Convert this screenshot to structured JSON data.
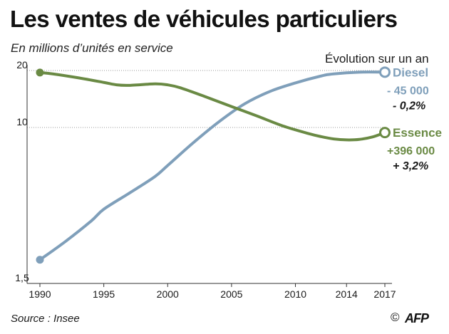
{
  "header": {
    "title": "Les ventes de véhicules particuliers",
    "subtitle": "En millions d’unités en service",
    "evolution_label": "Évolution sur un an"
  },
  "footer": {
    "source": "Source : Insee",
    "copyright": "©",
    "brand": "AFP"
  },
  "colors": {
    "diesel": "#7f9fba",
    "essence": "#6a8a44",
    "axis": "#333333",
    "grid": "#9a9a9a"
  },
  "chart_data": {
    "type": "line",
    "title": "Les ventes de véhicules particuliers",
    "subtitle": "En millions d’unités en service",
    "xlabel": "",
    "ylabel": "",
    "y_scale": "log",
    "ylim": [
      1.5,
      20
    ],
    "yticks": [
      1.5,
      10,
      20
    ],
    "ytick_labels": [
      "1,5",
      "10",
      "20"
    ],
    "xlim": [
      1990,
      2017
    ],
    "xticks": [
      1990,
      1995,
      2000,
      2005,
      2010,
      2014,
      2017
    ],
    "xtick_labels": [
      "1990",
      "1995",
      "2000",
      "2005",
      "2010",
      "2014",
      "2017"
    ],
    "grid": "horizontal at 10 and 20",
    "series": [
      {
        "name": "Diesel",
        "key": "diesel",
        "x": [
          1990,
          1992,
          1994,
          1995,
          1997,
          1999,
          2000,
          2002,
          2004,
          2006,
          2008,
          2010,
          2012,
          2013,
          2015,
          2017
        ],
        "y": [
          2.0,
          2.5,
          3.2,
          3.7,
          4.5,
          5.5,
          6.3,
          8.3,
          10.7,
          13.3,
          15.5,
          17.2,
          18.7,
          19.2,
          19.6,
          19.6
        ],
        "label_value": "- 45 000",
        "label_pct": "- 0,2%"
      },
      {
        "name": "Essence",
        "key": "essence",
        "x": [
          1990,
          1991,
          1993,
          1995,
          1996,
          1997,
          1999,
          2000,
          2001,
          2003,
          2005,
          2007,
          2009,
          2011,
          2012,
          2013,
          2014,
          2015,
          2016,
          2017
        ],
        "y": [
          19.5,
          19.2,
          18.3,
          17.3,
          16.8,
          16.7,
          17.0,
          16.8,
          16.2,
          14.5,
          12.9,
          11.5,
          10.2,
          9.3,
          8.95,
          8.7,
          8.6,
          8.65,
          8.9,
          9.4
        ],
        "label_value": "+396 000",
        "label_pct": "+ 3,2%"
      }
    ]
  }
}
